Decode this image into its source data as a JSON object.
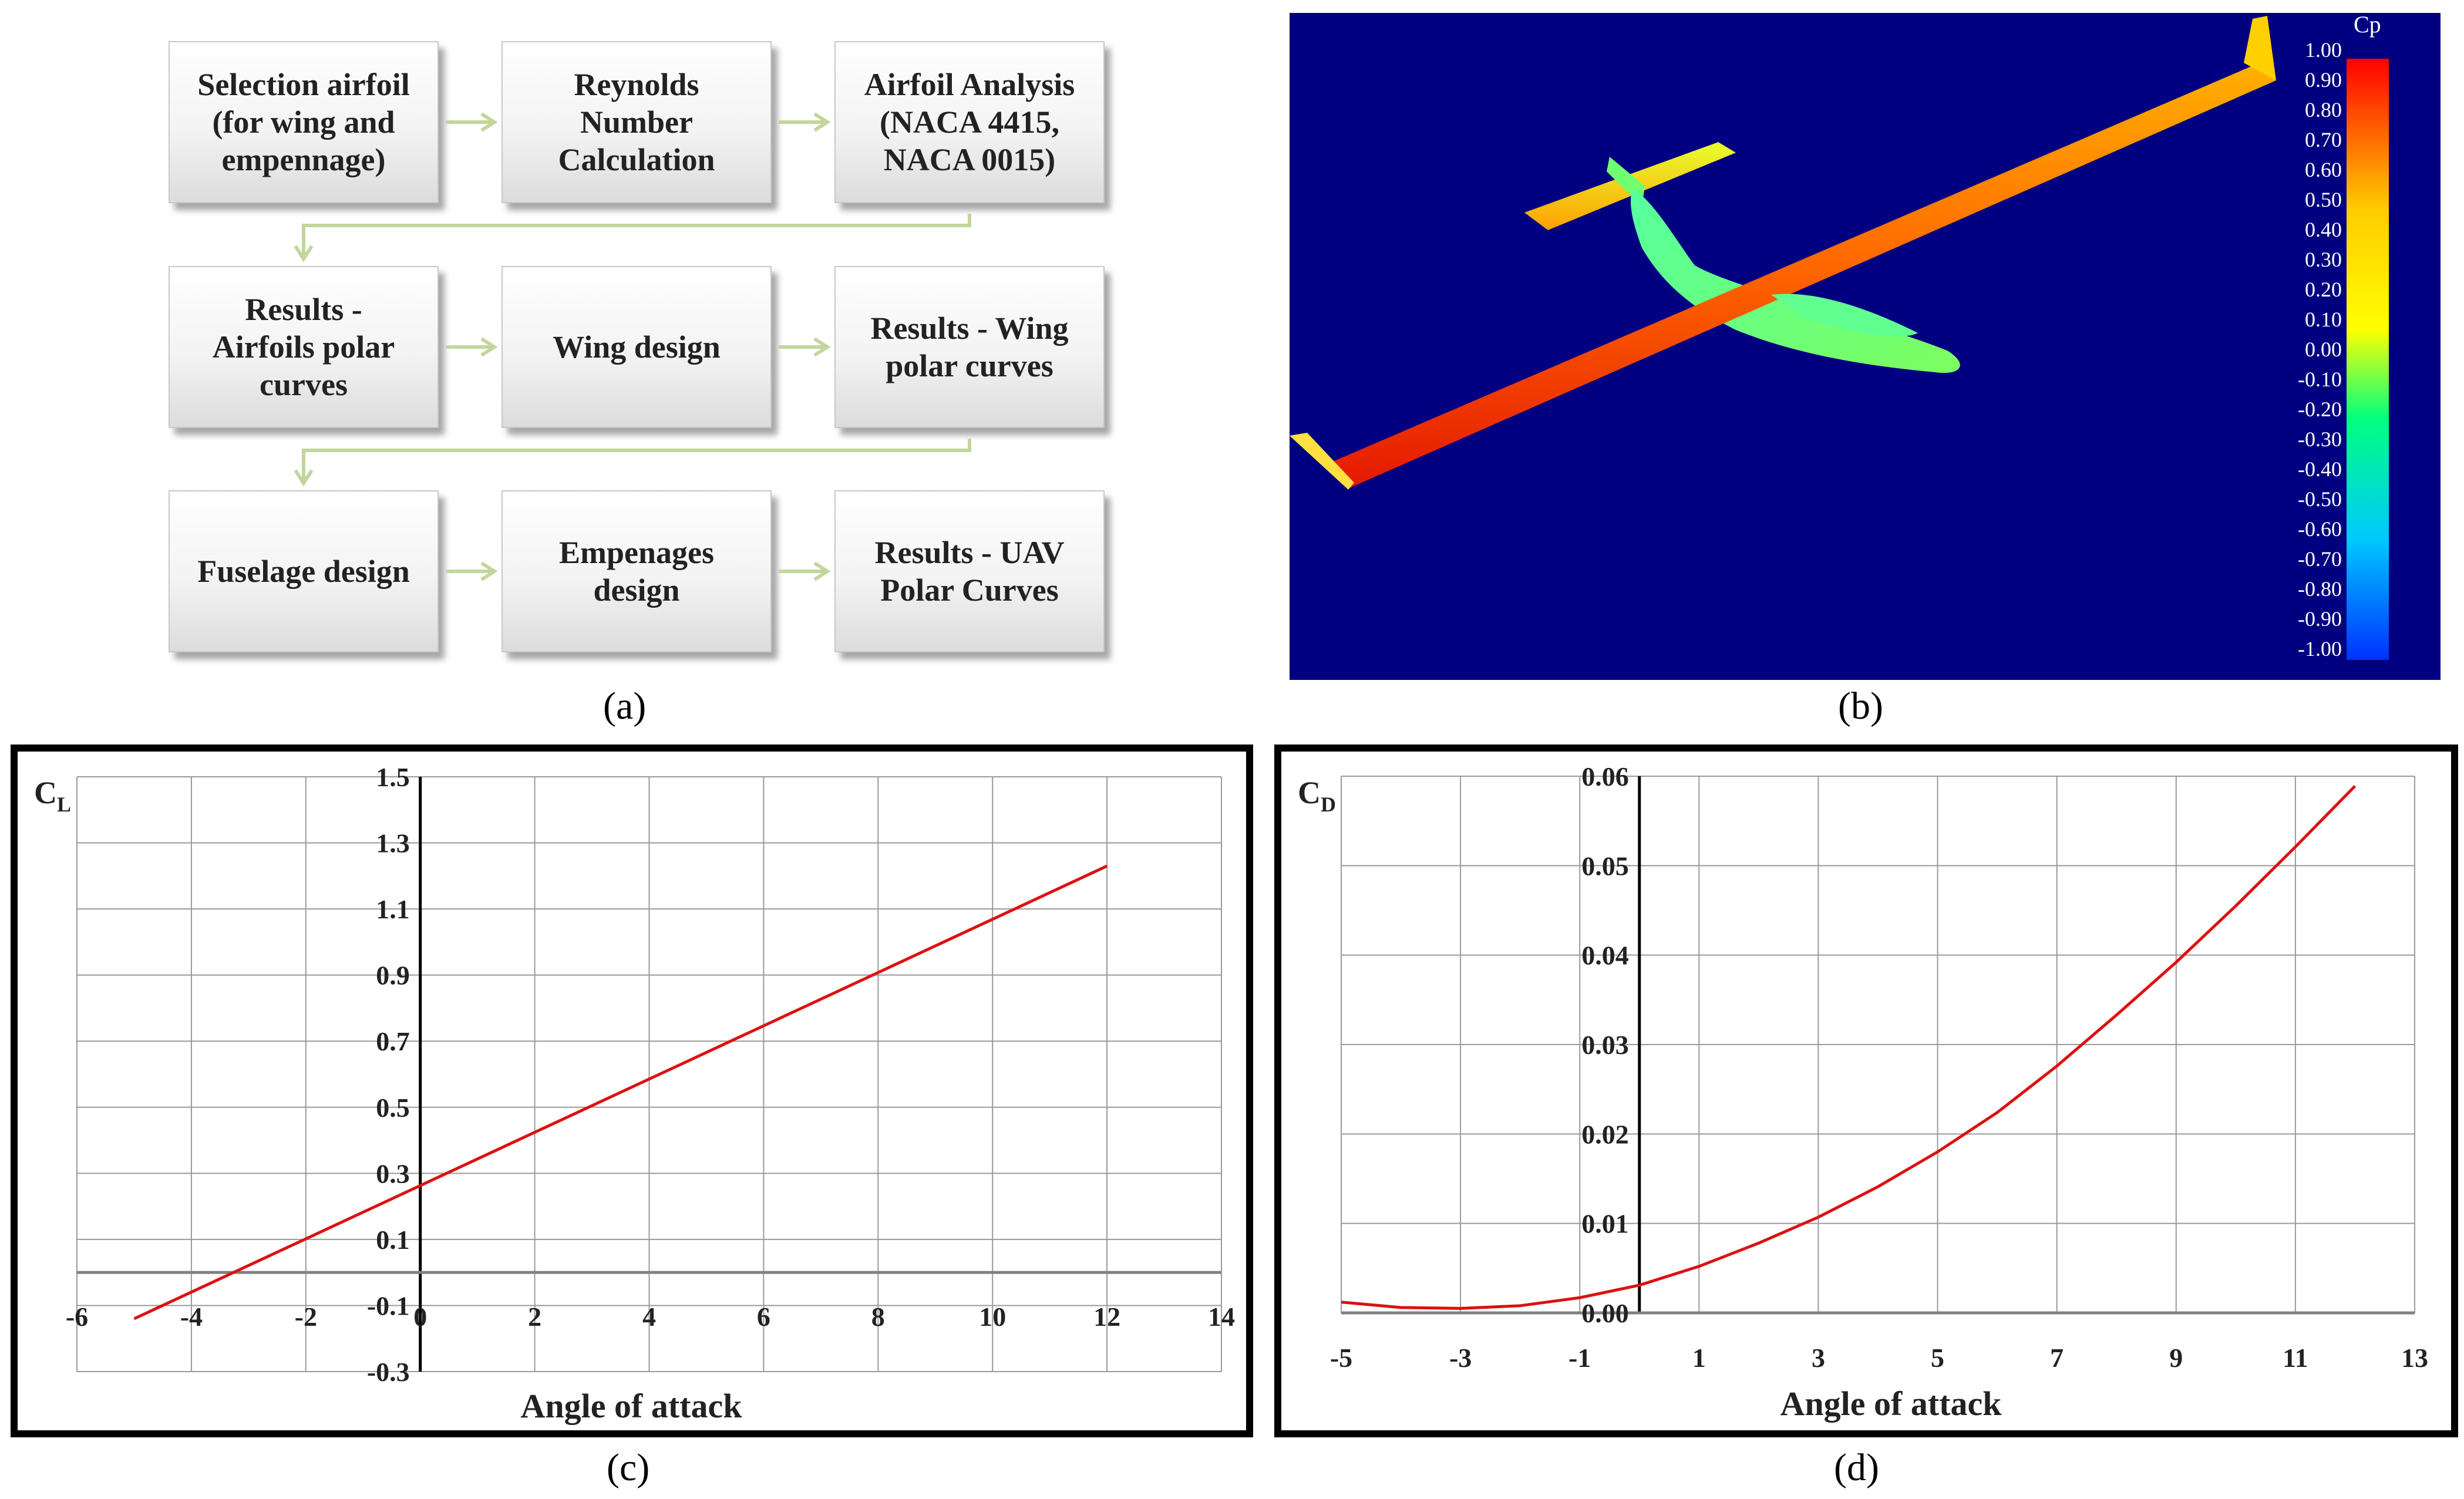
{
  "flowchart": {
    "boxes": [
      "Selection airfoil\n(for wing and\nempennage)",
      "Reynolds\nNumber\nCalculation",
      "Airfoil Analysis\n(NACA 4415,\nNACA 0015)",
      "Results -\nAirfoils polar\ncurves",
      "Wing design",
      "Results - Wing\npolar curves",
      "Fuselage design",
      "Empenages\ndesign",
      "Results - UAV\nPolar Curves"
    ],
    "arrow_color": "#c3d69b"
  },
  "captions": {
    "a": "(a)",
    "b": "(b)",
    "c": "(c)",
    "d": "(d)"
  },
  "render_panel": {
    "legend_title": "Cp",
    "legend_ticks": [
      "1.00",
      "0.90",
      "0.80",
      "0.70",
      "0.60",
      "0.50",
      "0.40",
      "0.30",
      "0.20",
      "0.10",
      "0.00",
      "-0.10",
      "-0.20",
      "-0.30",
      "-0.40",
      "-0.50",
      "-0.60",
      "-0.70",
      "-0.80",
      "-0.90",
      "-1.00"
    ],
    "background_color": "#000080"
  },
  "chart_data": [
    {
      "type": "line",
      "ylabel_main": "C",
      "ylabel_sub": "L",
      "xlabel": "Angle of attack",
      "xlim": [
        -6,
        14
      ],
      "ylim": [
        -0.3,
        1.5
      ],
      "x_ticks": [
        "-6",
        "-4",
        "-2",
        "0",
        "2",
        "4",
        "6",
        "8",
        "10",
        "12",
        "14"
      ],
      "y_ticks": [
        "1.5",
        "1.3",
        "1.1",
        "0.9",
        "0.7",
        "0.5",
        "0.3",
        "0.1",
        "-0.1",
        "-0.3"
      ],
      "line_color": "#dd1111",
      "series": [
        {
          "x": [
            -5,
            12
          ],
          "y": [
            -0.14,
            1.23
          ]
        }
      ]
    },
    {
      "type": "line",
      "ylabel_main": "C",
      "ylabel_sub": "D",
      "xlabel": "Angle of attack",
      "xlim": [
        -5,
        13
      ],
      "ylim": [
        0,
        0.06
      ],
      "x_ticks": [
        "-5",
        "-3",
        "-1",
        "1",
        "3",
        "5",
        "7",
        "9",
        "11",
        "13"
      ],
      "y_ticks": [
        "0.06",
        "0.05",
        "0.04",
        "0.03",
        "0.02",
        "0.01",
        "0.00"
      ],
      "line_color": "#dd1111",
      "series": [
        {
          "x": [
            -5,
            -4,
            -3,
            -2,
            -1,
            0,
            1,
            2,
            3,
            4,
            5,
            6,
            7,
            8,
            9,
            10,
            11,
            12
          ],
          "y": [
            0.0012,
            0.0006,
            0.0005,
            0.0008,
            0.0017,
            0.0031,
            0.0052,
            0.0078,
            0.0107,
            0.0141,
            0.018,
            0.0224,
            0.0276,
            0.0333,
            0.0392,
            0.0455,
            0.0521,
            0.0589
          ]
        }
      ]
    }
  ]
}
